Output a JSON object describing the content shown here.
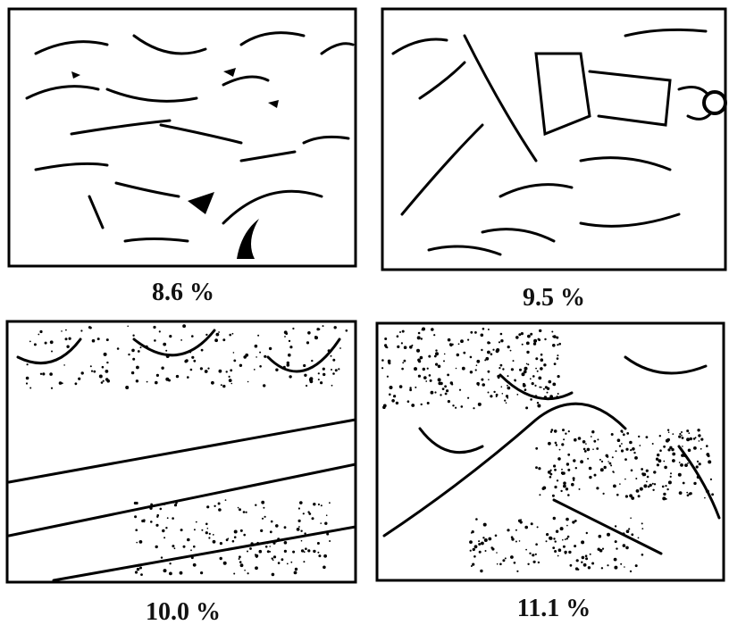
{
  "panels": [
    {
      "label": "8.6 %"
    },
    {
      "label": "9.5 %"
    },
    {
      "label": "10.0 %"
    },
    {
      "label": "11.1 %"
    }
  ]
}
